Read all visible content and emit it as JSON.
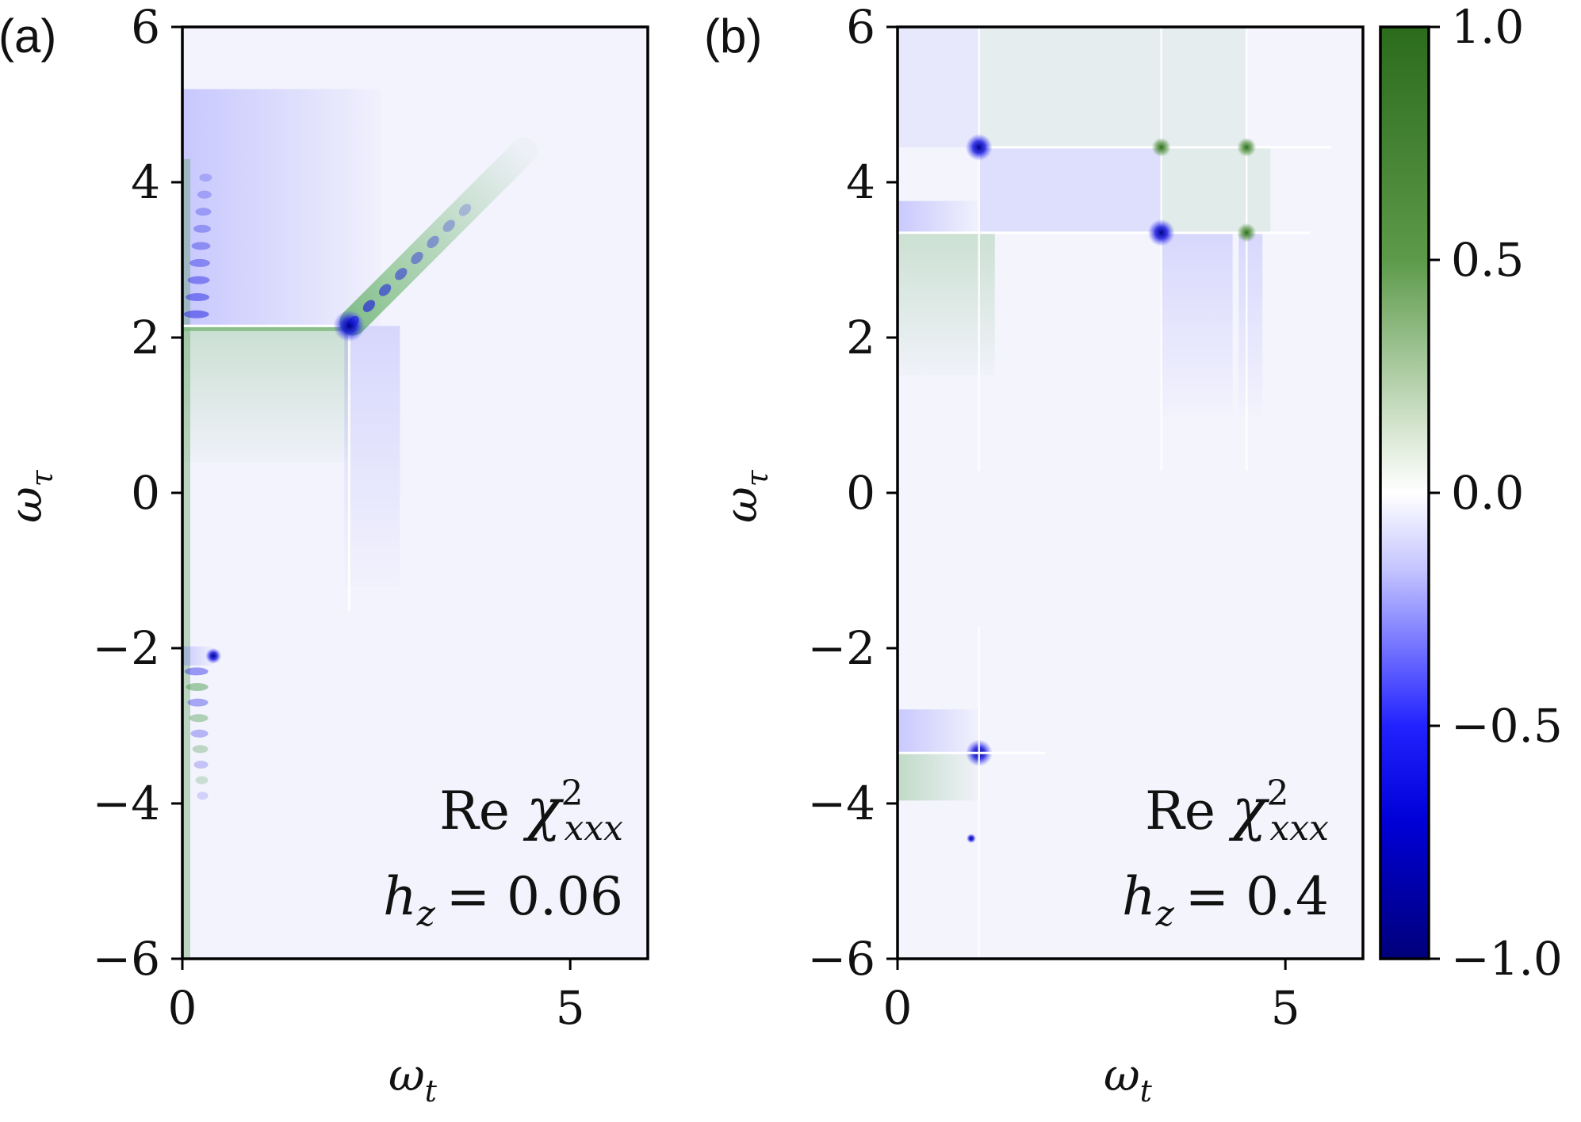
{
  "chart_data": [
    {
      "type": "heatmap",
      "panel_label": "(a)",
      "xlabel": "ω",
      "xlabel_sub": "t",
      "ylabel": "ω",
      "ylabel_sub": "τ",
      "xlim": [
        0,
        6
      ],
      "ylim": [
        -6,
        6
      ],
      "xticks": [
        0,
        5
      ],
      "xtick_labels": [
        "0",
        "5"
      ],
      "yticks": [
        6,
        4,
        2,
        0,
        -2,
        -4,
        -6
      ],
      "ytick_labels": [
        "6",
        "4",
        "2",
        "0",
        "−2",
        "−4",
        "−6"
      ],
      "annotation": {
        "line1_prefix": "Re ",
        "line1_symbol": "χ",
        "line1_sup": "2",
        "line1_sub": "xxx",
        "line2_var": "h",
        "line2_sub": "z",
        "line2_value": "= 0.06"
      },
      "features": {
        "horizontal_resonance_w_tau": 2.15,
        "resonance_end_w_t": 2.15,
        "peak_point": [
          2.15,
          2.15
        ],
        "diagonal_streak_from": [
          2.2,
          2.2
        ],
        "diagonal_streak_to": [
          4.4,
          4.4
        ],
        "negative_branch_w_tau": -2.1,
        "negative_branch_end_w_t": 0.4
      }
    },
    {
      "type": "heatmap",
      "panel_label": "(b)",
      "xlabel": "ω",
      "xlabel_sub": "t",
      "ylabel": "ω",
      "ylabel_sub": "τ",
      "xlim": [
        0,
        6
      ],
      "ylim": [
        -6,
        6
      ],
      "xticks": [
        0,
        5
      ],
      "xtick_labels": [
        "0",
        "5"
      ],
      "yticks": [
        6,
        4,
        2,
        0,
        -2,
        -4,
        -6
      ],
      "ytick_labels": [
        "6",
        "4",
        "2",
        "0",
        "−2",
        "−4",
        "−6"
      ],
      "annotation": {
        "line1_prefix": "Re ",
        "line1_symbol": "χ",
        "line1_sup": "2",
        "line1_sub": "xxx",
        "line2_var": "h",
        "line2_sub": "z",
        "line2_value": "= 0.4"
      },
      "features": {
        "resonance_rows_w_tau": [
          4.45,
          3.35
        ],
        "resonance_cols_w_t": [
          1.05,
          3.4,
          4.5
        ],
        "peak_points": [
          [
            1.05,
            4.45
          ],
          [
            3.4,
            3.35
          ],
          [
            3.4,
            4.45
          ],
          [
            4.5,
            4.45
          ],
          [
            4.5,
            3.35
          ],
          [
            1.05,
            -3.35
          ]
        ],
        "negative_row_w_tau": -3.35,
        "negative_row_end_w_t": 1.9
      }
    }
  ],
  "colorbar": {
    "range": [
      -1.0,
      1.0
    ],
    "ticks": [
      1.0,
      0.5,
      0.0,
      -0.5,
      -1.0
    ],
    "tick_labels": [
      "1.0",
      "0.5",
      "0.0",
      "−0.5",
      "−1.0"
    ],
    "colors": {
      "max": "#2b6b1c",
      "upper_mid": "#5d9a4a",
      "zero": "#ffffff",
      "lower_mid": "#2222ff",
      "low": "#0000d8",
      "min": "#00007a"
    }
  }
}
